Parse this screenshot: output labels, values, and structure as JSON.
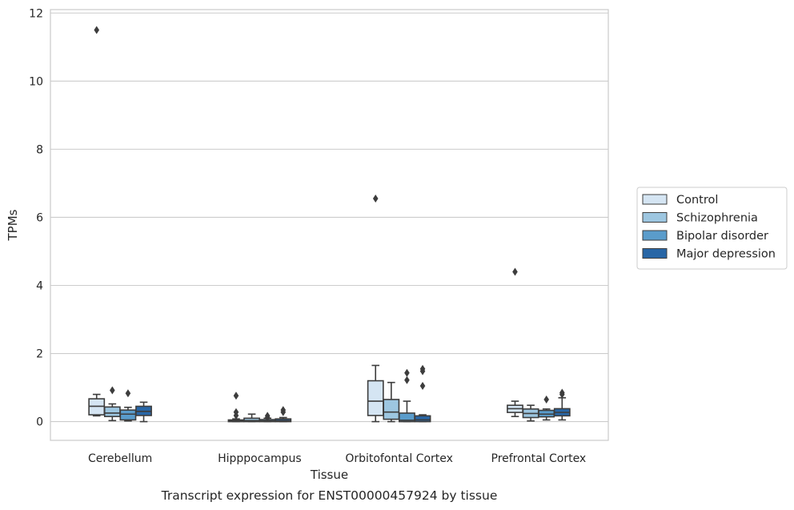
{
  "chart_data": {
    "type": "box",
    "xlabel": "Tissue",
    "ylabel": "TPMs",
    "caption": "Transcript expression for ENST00000457924 by tissue",
    "ylim": [
      -0.55,
      12.1
    ],
    "yticks": [
      0,
      2,
      4,
      6,
      8,
      10,
      12
    ],
    "grid": "horizontal",
    "legend_position": "right",
    "categories": [
      "Cerebellum",
      "Hipppocampus",
      "Orbitofontal Cortex",
      "Prefrontal Cortex"
    ],
    "series": [
      {
        "name": "Control",
        "color": "#d5e5f3",
        "boxes": [
          {
            "whislo": 0.17,
            "q1": 0.2,
            "med": 0.45,
            "q3": 0.67,
            "whishi": 0.8,
            "fliers": [
              11.5
            ]
          },
          {
            "whislo": 0.0,
            "q1": 0.0,
            "med": 0.02,
            "q3": 0.05,
            "whishi": 0.08,
            "fliers": [
              0.76,
              0.28,
              0.18
            ]
          },
          {
            "whislo": 0.0,
            "q1": 0.18,
            "med": 0.6,
            "q3": 1.2,
            "whishi": 1.65,
            "fliers": [
              6.55
            ]
          },
          {
            "whislo": 0.15,
            "q1": 0.27,
            "med": 0.38,
            "q3": 0.48,
            "whishi": 0.6,
            "fliers": [
              4.4
            ]
          }
        ]
      },
      {
        "name": "Schizophrenia",
        "color": "#9dc6e0",
        "boxes": [
          {
            "whislo": 0.03,
            "q1": 0.15,
            "med": 0.25,
            "q3": 0.43,
            "whishi": 0.52,
            "fliers": [
              0.92
            ]
          },
          {
            "whislo": 0.0,
            "q1": 0.0,
            "med": 0.03,
            "q3": 0.1,
            "whishi": 0.22,
            "fliers": []
          },
          {
            "whislo": 0.0,
            "q1": 0.07,
            "med": 0.28,
            "q3": 0.65,
            "whishi": 1.15,
            "fliers": []
          },
          {
            "whislo": 0.02,
            "q1": 0.12,
            "med": 0.24,
            "q3": 0.37,
            "whishi": 0.48,
            "fliers": []
          }
        ]
      },
      {
        "name": "Bipolar disorder",
        "color": "#5a9ccb",
        "boxes": [
          {
            "whislo": 0.02,
            "q1": 0.05,
            "med": 0.22,
            "q3": 0.34,
            "whishi": 0.42,
            "fliers": [
              0.83
            ]
          },
          {
            "whislo": 0.0,
            "q1": 0.0,
            "med": 0.02,
            "q3": 0.06,
            "whishi": 0.1,
            "fliers": [
              0.17,
              0.12
            ]
          },
          {
            "whislo": 0.0,
            "q1": 0.0,
            "med": 0.04,
            "q3": 0.25,
            "whishi": 0.6,
            "fliers": [
              1.43,
              1.22
            ]
          },
          {
            "whislo": 0.05,
            "q1": 0.14,
            "med": 0.22,
            "q3": 0.33,
            "whishi": 0.37,
            "fliers": [
              0.65
            ]
          }
        ]
      },
      {
        "name": "Major depression",
        "color": "#2866a6",
        "boxes": [
          {
            "whislo": 0.0,
            "q1": 0.18,
            "med": 0.3,
            "q3": 0.45,
            "whishi": 0.57,
            "fliers": []
          },
          {
            "whislo": 0.0,
            "q1": 0.0,
            "med": 0.03,
            "q3": 0.08,
            "whishi": 0.12,
            "fliers": [
              0.34,
              0.28
            ]
          },
          {
            "whislo": 0.0,
            "q1": 0.0,
            "med": 0.05,
            "q3": 0.17,
            "whishi": 0.2,
            "fliers": [
              1.55,
              1.48,
              1.05
            ]
          },
          {
            "whislo": 0.05,
            "q1": 0.17,
            "med": 0.27,
            "q3": 0.38,
            "whishi": 0.7,
            "fliers": [
              0.85,
              0.8
            ]
          }
        ]
      }
    ]
  }
}
